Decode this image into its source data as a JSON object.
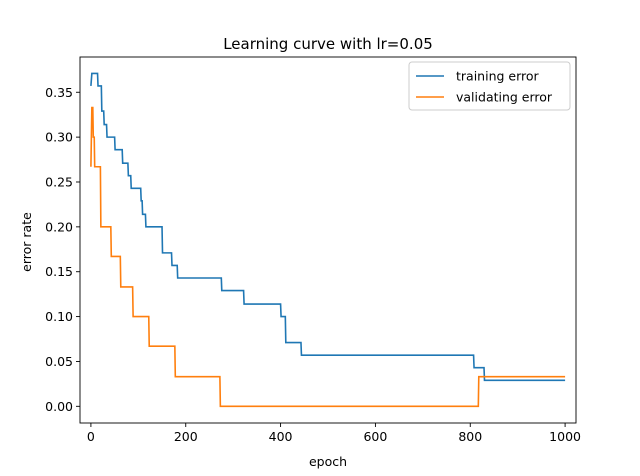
{
  "chart_data": {
    "type": "line",
    "title": "Learning curve with lr=0.05",
    "xlabel": "epoch",
    "ylabel": "error rate",
    "xlim": [
      -23,
      1023
    ],
    "ylim": [
      -0.0186,
      0.3893
    ],
    "xticks": [
      0,
      200,
      400,
      600,
      800,
      1000
    ],
    "yticks": [
      0.0,
      0.05,
      0.1,
      0.15,
      0.2,
      0.25,
      0.3,
      0.35
    ],
    "ytick_labels": [
      "0.00",
      "0.05",
      "0.10",
      "0.15",
      "0.20",
      "0.25",
      "0.30",
      "0.35"
    ],
    "grid": false,
    "legend_position": "top-right",
    "series": [
      {
        "name": "training error",
        "color": "#1f77b4",
        "step": true,
        "points": [
          [
            0,
            0.357
          ],
          [
            2,
            0.371
          ],
          [
            14,
            0.371
          ],
          [
            15,
            0.357
          ],
          [
            22,
            0.357
          ],
          [
            23,
            0.329
          ],
          [
            27,
            0.329
          ],
          [
            28,
            0.314
          ],
          [
            33,
            0.314
          ],
          [
            34,
            0.3
          ],
          [
            50,
            0.3
          ],
          [
            51,
            0.286
          ],
          [
            66,
            0.286
          ],
          [
            67,
            0.271
          ],
          [
            78,
            0.271
          ],
          [
            79,
            0.257
          ],
          [
            84,
            0.257
          ],
          [
            85,
            0.243
          ],
          [
            105,
            0.243
          ],
          [
            106,
            0.229
          ],
          [
            108,
            0.229
          ],
          [
            109,
            0.214
          ],
          [
            115,
            0.214
          ],
          [
            116,
            0.2
          ],
          [
            150,
            0.2
          ],
          [
            151,
            0.171
          ],
          [
            170,
            0.171
          ],
          [
            171,
            0.157
          ],
          [
            182,
            0.157
          ],
          [
            183,
            0.143
          ],
          [
            275,
            0.143
          ],
          [
            276,
            0.129
          ],
          [
            322,
            0.129
          ],
          [
            323,
            0.114
          ],
          [
            400,
            0.114
          ],
          [
            401,
            0.1
          ],
          [
            410,
            0.1
          ],
          [
            411,
            0.071
          ],
          [
            443,
            0.071
          ],
          [
            444,
            0.057
          ],
          [
            807,
            0.057
          ],
          [
            808,
            0.043
          ],
          [
            829,
            0.043
          ],
          [
            830,
            0.029
          ],
          [
            1000,
            0.029
          ]
        ]
      },
      {
        "name": "validating error",
        "color": "#ff7f0e",
        "step": true,
        "points": [
          [
            0,
            0.267
          ],
          [
            2,
            0.333
          ],
          [
            4,
            0.333
          ],
          [
            5,
            0.3
          ],
          [
            7,
            0.3
          ],
          [
            8,
            0.267
          ],
          [
            20,
            0.267
          ],
          [
            21,
            0.2
          ],
          [
            42,
            0.2
          ],
          [
            43,
            0.167
          ],
          [
            62,
            0.167
          ],
          [
            63,
            0.133
          ],
          [
            88,
            0.133
          ],
          [
            89,
            0.1
          ],
          [
            122,
            0.1
          ],
          [
            123,
            0.067
          ],
          [
            177,
            0.067
          ],
          [
            178,
            0.033
          ],
          [
            272,
            0.033
          ],
          [
            273,
            0.0
          ],
          [
            817,
            0.0
          ],
          [
            818,
            0.033
          ],
          [
            1000,
            0.033
          ]
        ]
      }
    ]
  }
}
